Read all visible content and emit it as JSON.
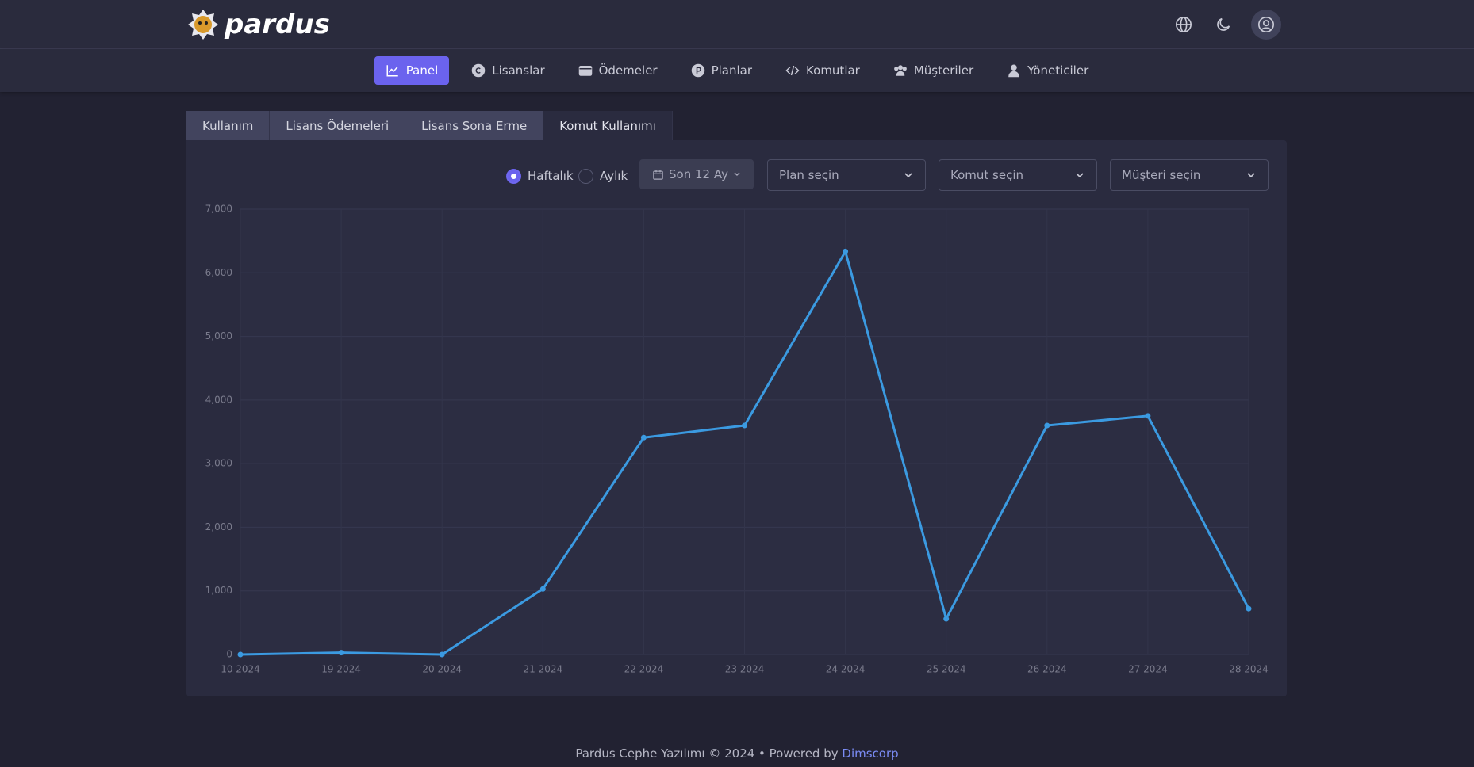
{
  "header": {
    "brand": "pardus"
  },
  "nav": [
    "Panel",
    "Lisanslar",
    "Ödemeler",
    "Planlar",
    "Komutlar",
    "Müşteriler",
    "Yöneticiler"
  ],
  "tabs": [
    "Kullanım",
    "Lisans Ödemeleri",
    "Lisans Sona Erme",
    "Komut Kullanımı"
  ],
  "controls": {
    "period": [
      "Haftalık",
      "Aylık"
    ],
    "range": "Son 12 Ay",
    "selects": [
      "Plan seçin",
      "Komut seçin",
      "Müşteri seçin"
    ]
  },
  "chart_data": {
    "type": "line",
    "categories": [
      "10 2024",
      "19 2024",
      "20 2024",
      "21 2024",
      "22 2024",
      "23 2024",
      "24 2024",
      "25 2024",
      "26 2024",
      "27 2024",
      "28 2024"
    ],
    "series": [
      {
        "color": "#3b9ae1",
        "values": [
          0,
          30,
          0,
          1030,
          3410,
          3600,
          6335,
          560,
          3600,
          3750,
          720
        ]
      }
    ],
    "ylim": [
      0,
      7000
    ],
    "yticks": [
      0,
      {
        "value": 1000,
        "label": "1,000"
      },
      {
        "value": 2000,
        "label": "2,000"
      },
      {
        "value": 3000,
        "label": "3,000"
      },
      {
        "value": 4000,
        "label": "4,000"
      },
      {
        "value": 5000,
        "label": "5,000"
      },
      {
        "value": 6000,
        "label": "6,000"
      },
      {
        "value": 7000,
        "label": "7,000"
      }
    ],
    "grid": true
  },
  "footer": {
    "text": "Pardus Cephe Yazılımı © 2024 • Powered by",
    "link": "Dimscorp"
  }
}
